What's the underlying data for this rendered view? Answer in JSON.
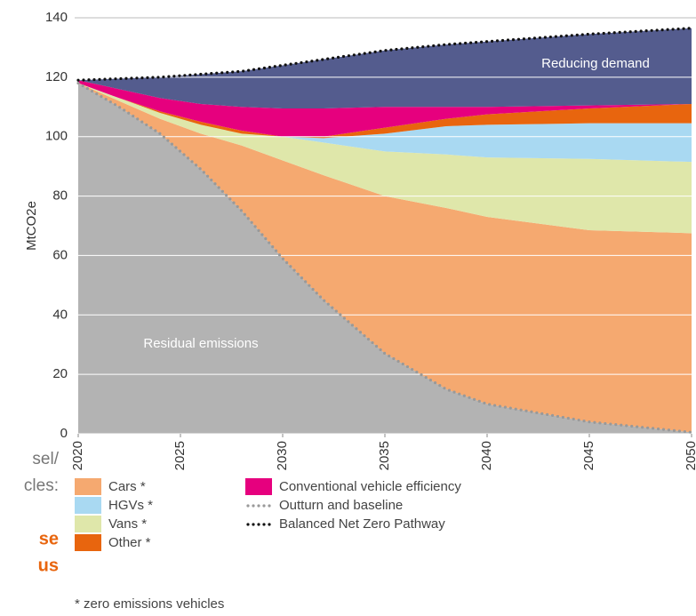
{
  "chart_data": {
    "type": "stacked_area",
    "y_label": "MtCO2e",
    "annotations": [
      "Reducing demand",
      "Residual emissions"
    ],
    "footnote": "* zero emissions vehicles",
    "clipped_text": [
      "sel/",
      "cles:",
      "se",
      "us"
    ],
    "x": [
      2020,
      2022,
      2024,
      2026,
      2028,
      2030,
      2032,
      2035,
      2038,
      2040,
      2045,
      2050
    ],
    "xlim": [
      2020,
      2050
    ],
    "xticks": [
      2020,
      2025,
      2030,
      2035,
      2040,
      2045,
      2050
    ],
    "ylim": [
      0,
      140
    ],
    "yticks": [
      0,
      20,
      40,
      60,
      80,
      100,
      120,
      140
    ],
    "grid": true,
    "series": [
      {
        "name": "Residual emissions",
        "color": "#b3b3b3",
        "values": [
          118,
          110,
          101,
          89,
          75,
          59,
          45,
          27,
          15,
          10,
          4,
          0.5
        ]
      },
      {
        "name": "Cars *",
        "color": "#f5a970",
        "values": [
          0,
          2,
          5,
          12,
          22,
          33,
          42,
          53,
          61,
          63,
          64.5,
          67
        ]
      },
      {
        "name": "Vans *",
        "color": "#dfe7aa",
        "values": [
          0,
          1,
          2,
          3,
          4,
          8,
          11,
          15,
          18,
          20,
          24,
          24
        ]
      },
      {
        "name": "HGVs *",
        "color": "#a9d9f2",
        "values": [
          0,
          0,
          0,
          0,
          0,
          0,
          1.5,
          6,
          9.5,
          11,
          12,
          13
        ]
      },
      {
        "name": "Other *",
        "color": "#e8650e",
        "values": [
          0,
          0,
          0.5,
          1,
          1,
          0,
          0.5,
          2,
          2.5,
          3.5,
          5,
          6.5
        ]
      },
      {
        "name": "Conventional vehicle efficiency",
        "color": "#e6007e",
        "values": [
          1,
          3,
          4.5,
          6,
          8,
          9.5,
          9.5,
          7,
          4,
          2.5,
          1,
          0
        ]
      },
      {
        "name": "Reducing demand",
        "color": "#545c8e",
        "values": [
          0,
          3.5,
          7,
          10,
          12,
          14.5,
          16.5,
          19,
          21,
          22,
          24,
          25.5
        ]
      }
    ],
    "lines": [
      {
        "name": "Outturn and baseline",
        "color": "#999999",
        "values": [
          118,
          110,
          101,
          89,
          75,
          59,
          45,
          27,
          15,
          10,
          4,
          0.5
        ]
      },
      {
        "name": "Balanced Net Zero Pathway",
        "color": "#111111",
        "values": [
          119,
          119.5,
          120,
          121,
          122,
          124,
          126,
          129,
          131,
          132,
          134.5,
          136.5
        ]
      }
    ]
  }
}
